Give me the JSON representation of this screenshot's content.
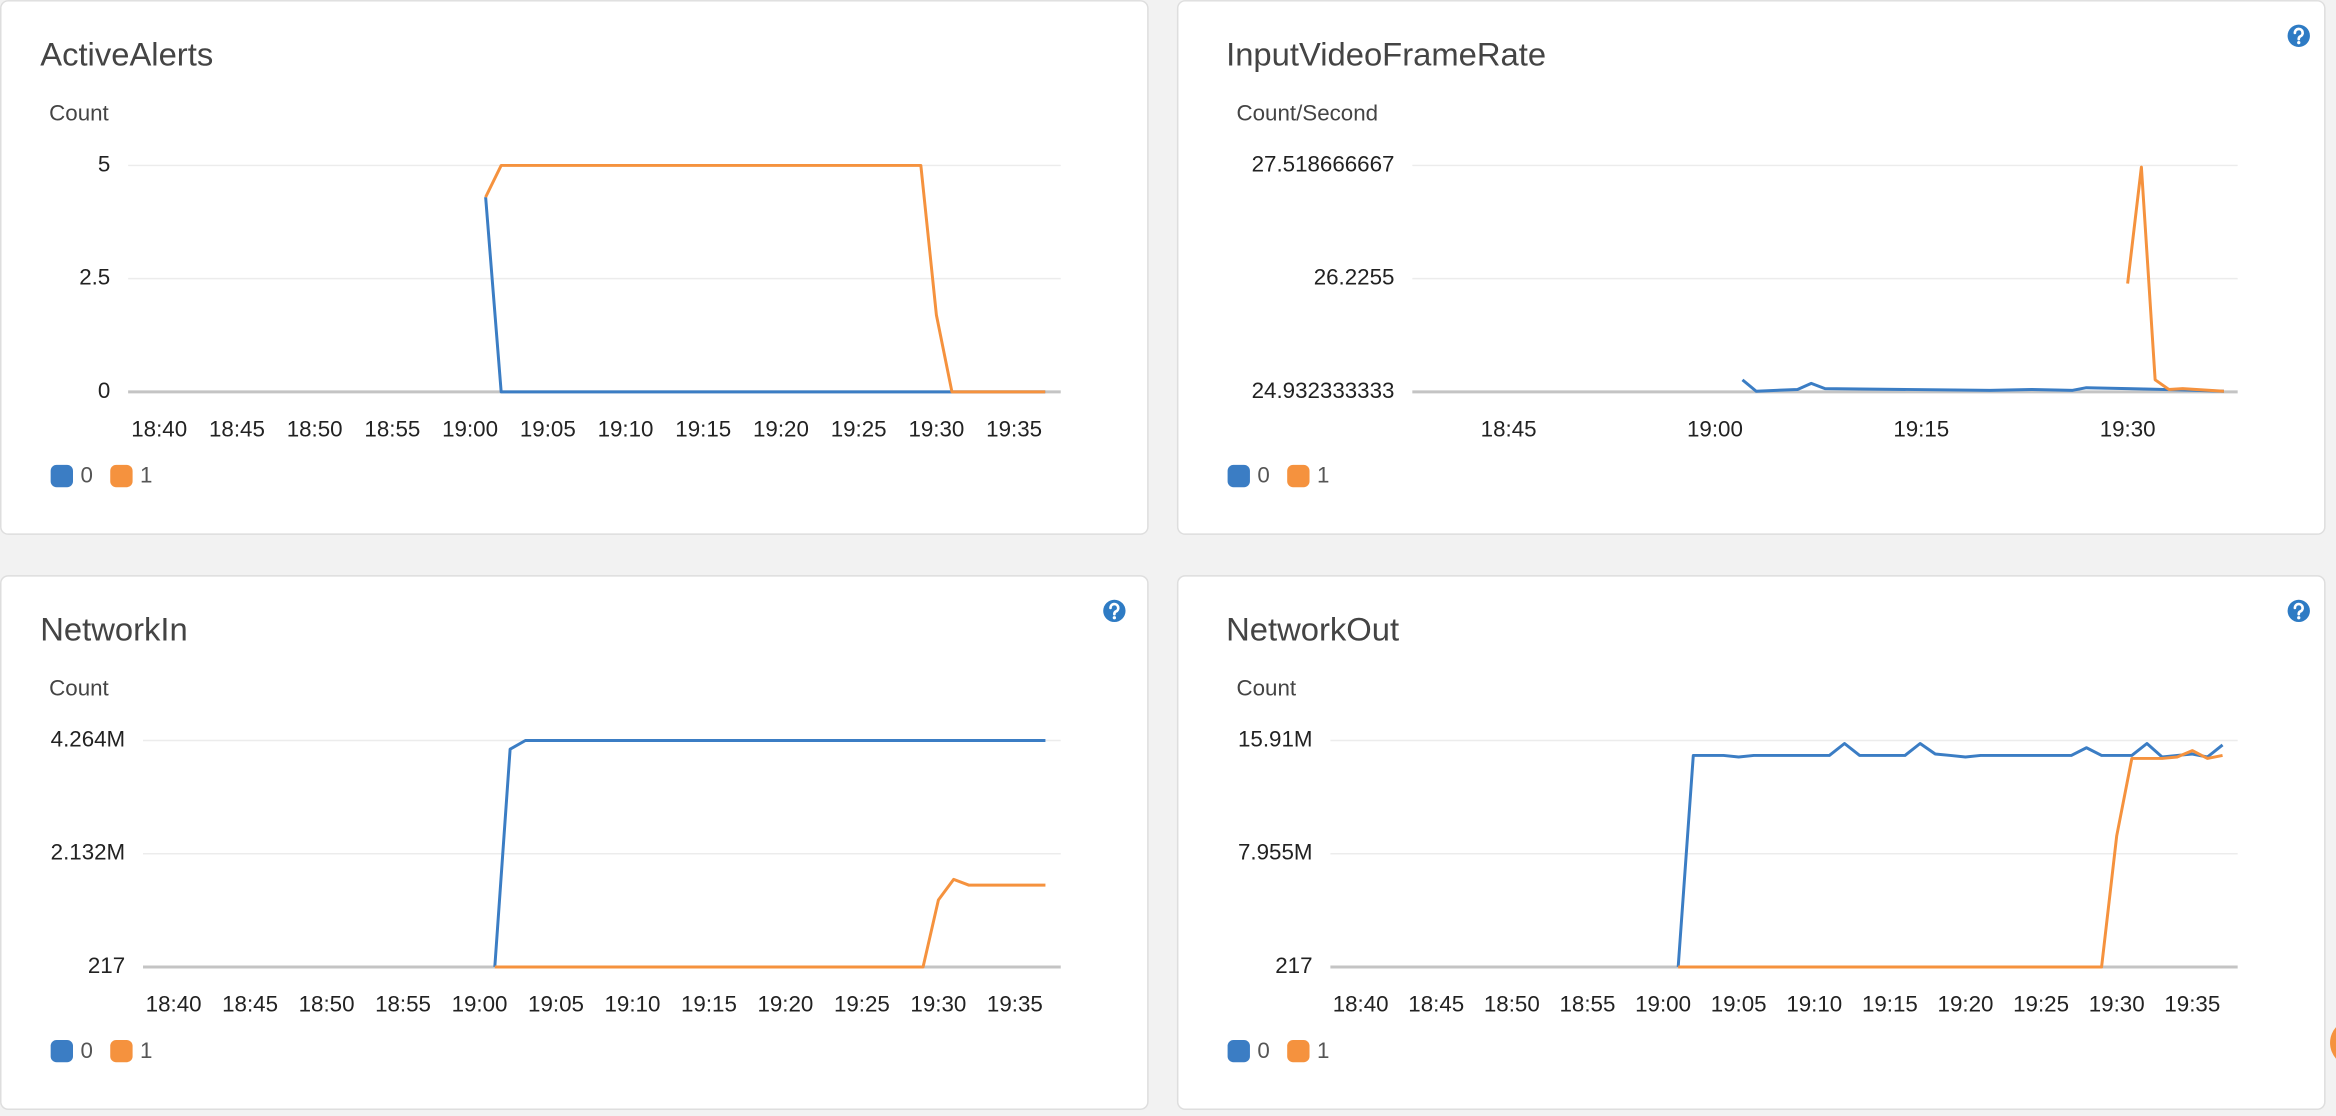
{
  "chart_data": [
    {
      "type": "line",
      "title": "ActiveAlerts",
      "y_label": "Count",
      "xlim": [
        "18:38",
        "19:38"
      ],
      "xticks": [
        "18:40",
        "18:45",
        "18:50",
        "18:55",
        "19:00",
        "19:05",
        "19:10",
        "19:15",
        "19:20",
        "19:25",
        "19:30",
        "19:35"
      ],
      "ylim": [
        0,
        5
      ],
      "yticks": [
        0,
        2.5,
        5
      ],
      "grid": true,
      "series": [
        {
          "name": "0",
          "color": "#3b7dc4",
          "x": [
            "19:01",
            "19:02",
            "19:37"
          ],
          "values": [
            4.3,
            0,
            0
          ]
        },
        {
          "name": "1",
          "color": "#f5923e",
          "x": [
            "19:01",
            "19:02",
            "19:29",
            "19:30",
            "19:31",
            "19:37"
          ],
          "values": [
            4.3,
            5,
            5,
            1.7,
            0,
            0
          ]
        }
      ]
    },
    {
      "type": "line",
      "title": "InputVideoFrameRate",
      "y_label": "Count/Second",
      "xlim": [
        "18:38",
        "19:38"
      ],
      "xticks": [
        "18:45",
        "19:00",
        "19:15",
        "19:30"
      ],
      "ylim": [
        24.932333333,
        27.518666667
      ],
      "yticks": [
        24.932333333,
        26.2255,
        27.518666667
      ],
      "grid": true,
      "series": [
        {
          "name": "0",
          "color": "#3b7dc4",
          "x": [
            "19:02",
            "19:03",
            "19:06",
            "19:07",
            "19:08",
            "19:20",
            "19:23",
            "19:26",
            "19:27",
            "19:30",
            "19:35",
            "19:37"
          ],
          "values": [
            25.07,
            24.94,
            24.96,
            25.03,
            24.97,
            24.95,
            24.96,
            24.95,
            24.98,
            24.97,
            24.95,
            24.94
          ]
        },
        {
          "name": "1",
          "color": "#f5923e",
          "x": [
            "19:30",
            "19:31",
            "19:32",
            "19:33",
            "19:34",
            "19:37"
          ],
          "values": [
            26.17,
            27.5,
            25.07,
            24.96,
            24.97,
            24.94
          ]
        }
      ]
    },
    {
      "type": "line",
      "title": "NetworkIn",
      "y_label": "Count",
      "xlim": [
        "18:38",
        "19:38"
      ],
      "xticks": [
        "18:40",
        "18:45",
        "18:50",
        "18:55",
        "19:00",
        "19:05",
        "19:10",
        "19:15",
        "19:20",
        "19:25",
        "19:30",
        "19:35"
      ],
      "ylim": [
        217,
        4264000
      ],
      "yticks": [
        217,
        {
          "value": 2132108,
          "label": "2.132M"
        },
        {
          "value": 4264000,
          "label": "4.264M"
        }
      ],
      "grid": true,
      "series": [
        {
          "name": "0",
          "color": "#3b7dc4",
          "x": [
            "19:01",
            "19:02",
            "19:03",
            "19:37"
          ],
          "values": [
            217,
            4100000,
            4264000,
            4264000
          ]
        },
        {
          "name": "1",
          "color": "#f5923e",
          "x": [
            "19:01",
            "19:29",
            "19:30",
            "19:31",
            "19:32",
            "19:37"
          ],
          "values": [
            217,
            217,
            1260000,
            1650000,
            1540000,
            1540000
          ]
        }
      ]
    },
    {
      "type": "line",
      "title": "NetworkOut",
      "y_label": "Count",
      "xlim": [
        "18:38",
        "19:38"
      ],
      "xticks": [
        "18:40",
        "18:45",
        "18:50",
        "18:55",
        "19:00",
        "19:05",
        "19:10",
        "19:15",
        "19:20",
        "19:25",
        "19:30",
        "19:35"
      ],
      "ylim": [
        217,
        15910000
      ],
      "yticks": [
        217,
        {
          "value": 7955108,
          "label": "7.955M"
        },
        {
          "value": 15910000,
          "label": "15.91M"
        }
      ],
      "grid": true,
      "series": [
        {
          "name": "0",
          "color": "#3b7dc4",
          "x": [
            "19:01",
            "19:02",
            "19:04",
            "19:05",
            "19:06",
            "19:11",
            "19:12",
            "19:13",
            "19:16",
            "19:17",
            "19:18",
            "19:19",
            "19:20",
            "19:21",
            "19:27",
            "19:28",
            "19:29",
            "19:31",
            "19:32",
            "19:33",
            "19:34",
            "19:35",
            "19:36",
            "19:37"
          ],
          "values": [
            217,
            14860000,
            14860000,
            14750000,
            14860000,
            14860000,
            15700000,
            14860000,
            14860000,
            15700000,
            14960000,
            14860000,
            14750000,
            14860000,
            14860000,
            15400000,
            14860000,
            14860000,
            15700000,
            14750000,
            14860000,
            14960000,
            14750000,
            15600000
          ]
        },
        {
          "name": "1",
          "color": "#f5923e",
          "x": [
            "19:01",
            "19:29",
            "19:30",
            "19:31",
            "19:33",
            "19:34",
            "19:35",
            "19:36",
            "19:37"
          ],
          "values": [
            217,
            217,
            9210000,
            14650000,
            14650000,
            14750000,
            15200000,
            14650000,
            14860000
          ]
        }
      ]
    }
  ]
}
